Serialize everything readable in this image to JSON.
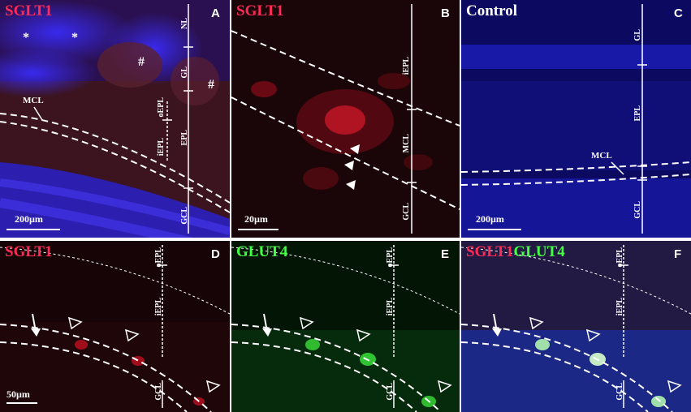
{
  "panels": {
    "A": {
      "letter": "A",
      "title": "SGLT1",
      "scale": "200µm",
      "layers": {
        "nl": "NL",
        "gl": "GL",
        "epl": "EPL",
        "oepl": "oEPL",
        "iepl": "iEPL",
        "gcl": "GCL"
      },
      "mcl": "MCL",
      "marks": {
        "star": "*",
        "hash": "#"
      }
    },
    "B": {
      "letter": "B",
      "title": "SGLT1",
      "scale": "20µm",
      "layers": {
        "iepl": "iEPL",
        "mcl": "MCL",
        "gcl": "GCL"
      }
    },
    "C": {
      "letter": "C",
      "title": "Control",
      "scale": "200µm",
      "layers": {
        "gl": "GL",
        "epl": "EPL",
        "gcl": "GCL"
      },
      "mcl": "MCL"
    },
    "D": {
      "letter": "D",
      "title": "SGLT1",
      "scale": "50µm",
      "layers": {
        "oepl": "oEPL",
        "iepl": "iEPL",
        "gcl": "GCL"
      }
    },
    "E": {
      "letter": "E",
      "title": "GLUT4",
      "layers": {
        "oepl": "oEPL",
        "iepl": "iEPL",
        "gcl": "GCL"
      }
    },
    "F": {
      "letter": "F",
      "title_part1": "SGLT1",
      "title_part2": "GLUT4",
      "layers": {
        "oepl": "oEPL",
        "iepl": "iEPL",
        "gcl": "GCL"
      }
    }
  },
  "colors": {
    "sglt1": "#ff2a55",
    "glut4": "#44ff44",
    "control_title": "#ffffff",
    "annotation": "#ffffff"
  }
}
